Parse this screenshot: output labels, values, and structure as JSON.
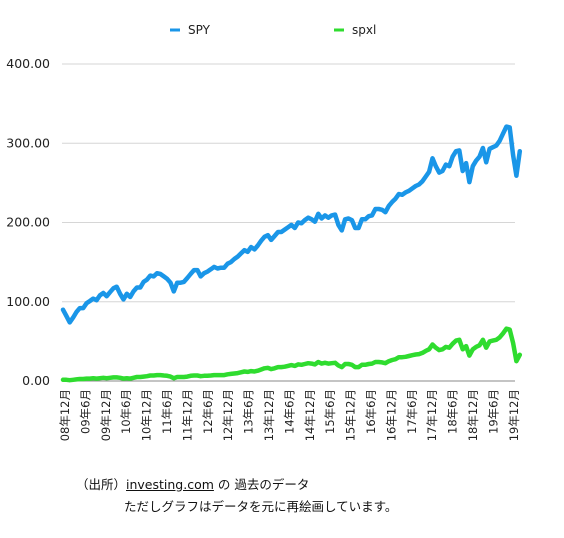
{
  "chart_data": {
    "type": "line",
    "x_ticks": [
      "08年12月",
      "09年6月",
      "09年12月",
      "10年6月",
      "10年12月",
      "11年6月",
      "11年12月",
      "12年6月",
      "12年12月",
      "13年6月",
      "13年12月",
      "14年6月",
      "14年12月",
      "15年6月",
      "15年12月",
      "16年6月",
      "16年12月",
      "17年6月",
      "17年12月",
      "18年6月",
      "18年12月",
      "19年6月",
      "19年12月"
    ],
    "y_ticks": [
      "0.00",
      "100.00",
      "200.00",
      "300.00",
      "400.00"
    ],
    "ylim": [
      0,
      400
    ],
    "grid": true,
    "legend_position": "top",
    "series": [
      {
        "name": "SPY",
        "color": "#1a96e8",
        "values": [
          90,
          82,
          74,
          80,
          87,
          92,
          92,
          98,
          101,
          104,
          102,
          108,
          111,
          107,
          112,
          117,
          119,
          110,
          103,
          110,
          106,
          113,
          118,
          118,
          125,
          128,
          133,
          132,
          136,
          135,
          132,
          129,
          124,
          113,
          124,
          124,
          125,
          130,
          135,
          140,
          140,
          132,
          136,
          138,
          141,
          144,
          142,
          143,
          143,
          148,
          150,
          154,
          157,
          161,
          165,
          163,
          169,
          166,
          171,
          177,
          182,
          184,
          178,
          183,
          188,
          188,
          191,
          194,
          197,
          193,
          200,
          199,
          203,
          206,
          204,
          201,
          211,
          205,
          209,
          206,
          209,
          210,
          197,
          190,
          204,
          205,
          203,
          193,
          193,
          204,
          204,
          208,
          209,
          217,
          217,
          216,
          213,
          221,
          226,
          230,
          236,
          235,
          238,
          240,
          243,
          246,
          248,
          252,
          258,
          264,
          281,
          271,
          263,
          265,
          273,
          271,
          283,
          290,
          291,
          265,
          275,
          251,
          271,
          278,
          283,
          294,
          276,
          293,
          295,
          297,
          303,
          312,
          321,
          320,
          285,
          259,
          290
        ]
      },
      {
        "name": "spxl",
        "color": "#2fdc2f",
        "values": [
          1.5,
          1.5,
          1.0,
          1.5,
          2.0,
          2.5,
          2.5,
          3.0,
          3.0,
          3.5,
          3.0,
          3.5,
          4.0,
          3.5,
          4.0,
          4.5,
          4.5,
          4.0,
          3.0,
          3.5,
          3.0,
          4.0,
          5.0,
          5.0,
          5.5,
          6.0,
          7.0,
          7.0,
          7.5,
          7.5,
          7.0,
          6.5,
          5.5,
          3.5,
          5.0,
          5.0,
          5.0,
          5.5,
          6.5,
          7.0,
          7.0,
          6.0,
          6.5,
          6.5,
          7.0,
          7.5,
          7.5,
          7.5,
          7.5,
          8.5,
          9.0,
          9.5,
          10.0,
          11.0,
          12.0,
          11.5,
          12.5,
          12.0,
          13.0,
          14.5,
          16.0,
          16.5,
          15.0,
          16.0,
          17.5,
          17.5,
          18.0,
          19.0,
          20.0,
          19.0,
          21.0,
          20.5,
          21.5,
          22.5,
          22.0,
          21.0,
          24.0,
          22.0,
          23.0,
          22.0,
          22.5,
          23.0,
          19.5,
          17.5,
          21.5,
          21.5,
          20.5,
          17.5,
          17.5,
          20.5,
          20.5,
          21.5,
          22.0,
          24.0,
          24.0,
          23.5,
          22.5,
          25.0,
          26.5,
          27.5,
          30.0,
          30.0,
          30.5,
          31.5,
          32.5,
          33.5,
          34.0,
          35.5,
          38.0,
          40.0,
          46.0,
          42.0,
          39.0,
          40.0,
          43.0,
          42.0,
          47.0,
          51.0,
          52.0,
          40.0,
          44.0,
          32.0,
          40.0,
          43.0,
          45.0,
          52.0,
          42.0,
          50.0,
          51.0,
          52.0,
          55.0,
          60.0,
          66.0,
          65.0,
          48.0,
          25.0,
          33.0
        ]
      }
    ]
  },
  "notes": {
    "source_prefix": "（出所）",
    "source_link": "investing.com",
    "source_suffix": " の 過去のデータ",
    "redraw_note": "ただしグラフはデータを元に再絵画しています。"
  }
}
